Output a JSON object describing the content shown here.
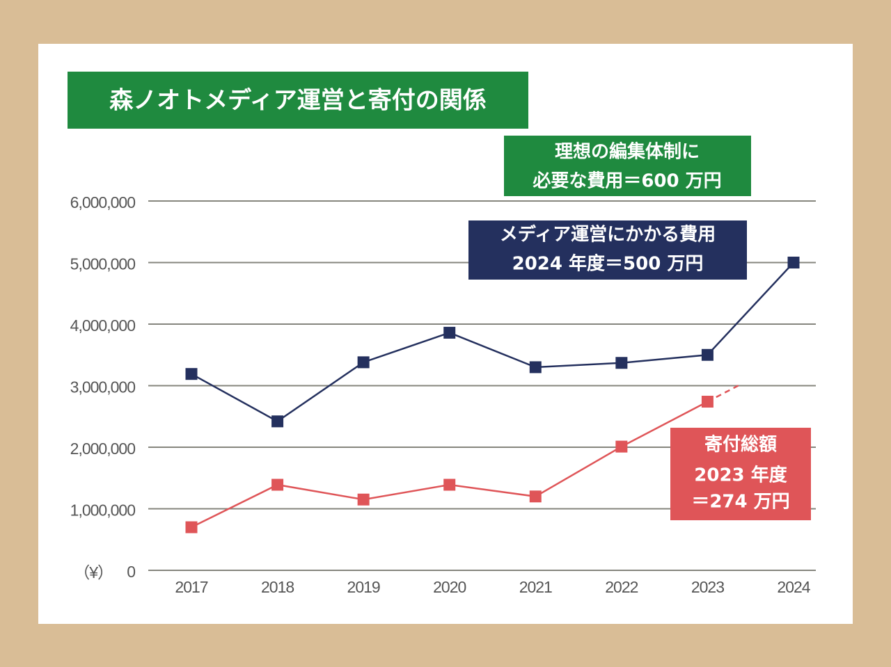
{
  "chart_data": {
    "type": "line",
    "title": "森ノオトメディア運営と寄付の関係",
    "categories": [
      "2017",
      "2018",
      "2019",
      "2020",
      "2021",
      "2022",
      "2023",
      "2024"
    ],
    "series": [
      {
        "name": "メディア運営にかかる費用",
        "color": "#24305e",
        "values": [
          3190000,
          2420000,
          3380000,
          3860000,
          3300000,
          3370000,
          3500000,
          5000000
        ]
      },
      {
        "name": "寄付総額",
        "color": "#df5558",
        "values": [
          700000,
          1390000,
          1150000,
          1390000,
          1200000,
          2010000,
          2740000,
          null
        ]
      }
    ],
    "y_unit": "（¥）",
    "ylim": [
      0,
      6000000
    ],
    "yticks": [
      0,
      {
        "value": 1000000,
        "label": "1,000,000"
      },
      {
        "value": 2000000,
        "label": "2,000,000"
      },
      {
        "value": 3000000,
        "label": "3,000,000"
      },
      {
        "value": 4000000,
        "label": "4,000,000"
      },
      {
        "value": 5000000,
        "label": "5,000,000"
      },
      {
        "value": 6000000,
        "label": "6,000,000"
      }
    ],
    "grid": true,
    "annotations": {
      "ideal": [
        "理想の編集体制に",
        "必要な費用＝600 万円"
      ],
      "cost": [
        "メディア運営にかかる費用",
        "2024 年度＝500 万円"
      ],
      "donation": [
        "寄付総額",
        "2023 年度",
        "＝274 万円"
      ]
    }
  }
}
